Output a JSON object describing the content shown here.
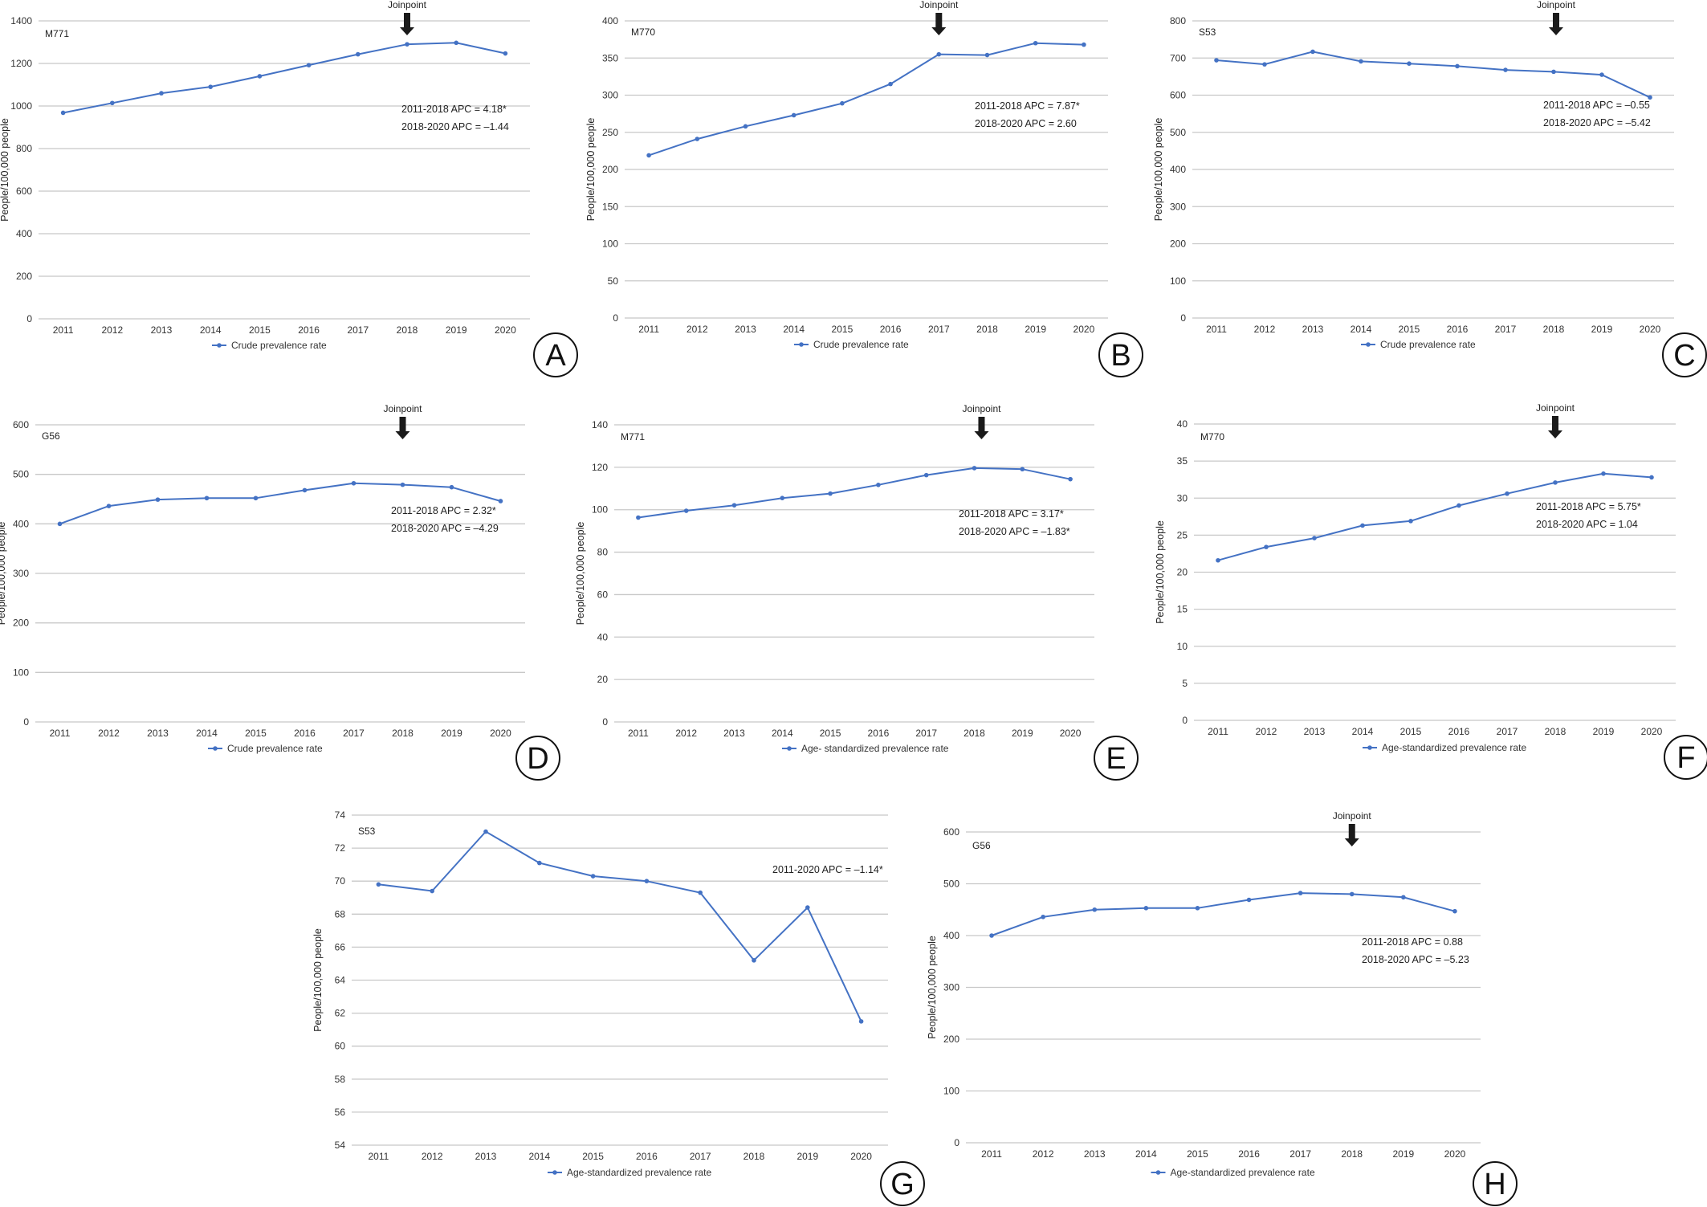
{
  "chart_data": [
    {
      "id": "A",
      "type": "line",
      "code": "M771",
      "categories": [
        "2011",
        "2012",
        "2013",
        "2014",
        "2015",
        "2016",
        "2017",
        "2018",
        "2019",
        "2020"
      ],
      "series": [
        {
          "name": "Crude prevalence rate",
          "values": [
            968,
            1014,
            1060,
            1090,
            1140,
            1192,
            1243,
            1290,
            1297,
            1247
          ]
        }
      ],
      "ylabel": "People/100,000 people",
      "ylim": [
        0,
        1400
      ],
      "ystep": 200,
      "annotations": [
        "2011-2018 APC = 4.18*",
        "2018-2020 APC = –1.44"
      ],
      "joinpoint_label": "Joinpoint",
      "joinpoint_at": 7.0,
      "panel_letter": "A"
    },
    {
      "id": "B",
      "type": "line",
      "code": "M770",
      "categories": [
        "2011",
        "2012",
        "2013",
        "2014",
        "2015",
        "2016",
        "2017",
        "2018",
        "2019",
        "2020"
      ],
      "series": [
        {
          "name": "Crude prevalence rate",
          "values": [
            219,
            241,
            258,
            273,
            289,
            315,
            355,
            354,
            370,
            368
          ]
        }
      ],
      "ylabel": "People/100,000 people",
      "ylim": [
        0,
        400
      ],
      "ystep": 50,
      "annotations": [
        "2011-2018 APC = 7.87*",
        "2018-2020 APC = 2.60"
      ],
      "joinpoint_label": "Joinpoint",
      "joinpoint_at": 6.0,
      "panel_letter": "B"
    },
    {
      "id": "C",
      "type": "line",
      "code": "S53",
      "categories": [
        "2011",
        "2012",
        "2013",
        "2014",
        "2015",
        "2016",
        "2017",
        "2018",
        "2019",
        "2020"
      ],
      "series": [
        {
          "name": "Crude prevalence rate",
          "values": [
            694,
            683,
            717,
            691,
            685,
            678,
            668,
            663,
            655,
            594
          ]
        }
      ],
      "ylabel": "People/100,000 people",
      "ylim": [
        0,
        800
      ],
      "ystep": 100,
      "annotations": [
        "2011-2018 APC = –0.55",
        "2018-2020 APC = –5.42"
      ],
      "joinpoint_label": "Joinpoint",
      "joinpoint_at": 7.05,
      "panel_letter": "C"
    },
    {
      "id": "D",
      "type": "line",
      "code": "G56",
      "categories": [
        "2011",
        "2012",
        "2013",
        "2014",
        "2015",
        "2016",
        "2017",
        "2018",
        "2019",
        "2020"
      ],
      "series": [
        {
          "name": "Crude prevalence rate",
          "values": [
            400,
            436,
            449,
            452,
            452,
            468,
            482,
            479,
            474,
            446
          ]
        }
      ],
      "ylabel": "People/100,000 people",
      "ylim": [
        0,
        600
      ],
      "ystep": 100,
      "annotations": [
        "2011-2018 APC = 2.32*",
        "2018-2020 APC = –4.29"
      ],
      "joinpoint_label": "Joinpoint",
      "joinpoint_at": 7.0,
      "panel_letter": "D"
    },
    {
      "id": "E",
      "type": "line",
      "code": "M771",
      "categories": [
        "2011",
        "2012",
        "2013",
        "2014",
        "2015",
        "2016",
        "2017",
        "2018",
        "2019",
        "2020"
      ],
      "series": [
        {
          "name": "Age- standardized prevalence rate",
          "values": [
            96.3,
            99.5,
            102.1,
            105.5,
            107.6,
            111.7,
            116.3,
            119.6,
            119.1,
            114.4
          ]
        }
      ],
      "ylabel": "People/100,000 people",
      "ylim": [
        0,
        140
      ],
      "ystep": 20,
      "annotations": [
        "2011-2018 APC = 3.17*",
        "2018-2020 APC = –1.83*"
      ],
      "joinpoint_label": "Joinpoint",
      "joinpoint_at": 7.15,
      "panel_letter": "E"
    },
    {
      "id": "F",
      "type": "line",
      "code": "M770",
      "categories": [
        "2011",
        "2012",
        "2013",
        "2014",
        "2015",
        "2016",
        "2017",
        "2018",
        "2019",
        "2020"
      ],
      "series": [
        {
          "name": "Age-standardized prevalence rate",
          "values": [
            21.6,
            23.4,
            24.6,
            26.3,
            26.9,
            29.0,
            30.6,
            32.1,
            33.3,
            32.8
          ]
        }
      ],
      "ylabel": "People/100,000 people",
      "ylim": [
        0,
        40
      ],
      "ystep": 5,
      "annotations": [
        "2011-2018 APC = 5.75*",
        "2018-2020 APC = 1.04"
      ],
      "joinpoint_label": "Joinpoint",
      "joinpoint_at": 7.0,
      "panel_letter": "F"
    },
    {
      "id": "G",
      "type": "line",
      "code": "S53",
      "categories": [
        "2011",
        "2012",
        "2013",
        "2014",
        "2015",
        "2016",
        "2017",
        "2018",
        "2019",
        "2020"
      ],
      "series": [
        {
          "name": "Age-standardized prevalence rate",
          "values": [
            69.8,
            69.4,
            73.0,
            71.1,
            70.3,
            70.0,
            69.3,
            65.2,
            68.4,
            61.5
          ]
        }
      ],
      "ylabel": "People/100,000 people",
      "ylim": [
        54,
        74
      ],
      "ystep": 2,
      "annotations": [
        "2011-2020 APC = –1.14*"
      ],
      "joinpoint_label": "",
      "joinpoint_at": null,
      "panel_letter": "G"
    },
    {
      "id": "H",
      "type": "line",
      "code": "G56",
      "categories": [
        "2011",
        "2012",
        "2013",
        "2014",
        "2015",
        "2016",
        "2017",
        "2018",
        "2019",
        "2020"
      ],
      "series": [
        {
          "name": "Age-standardized prevalence rate",
          "values": [
            400,
            436,
            450,
            453,
            453,
            469,
            482,
            480,
            474,
            447
          ]
        }
      ],
      "ylabel": "People/100,000 people",
      "ylim": [
        0,
        600
      ],
      "ystep": 100,
      "annotations": [
        "2011-2018 APC = 0.88",
        "2018-2020 APC = –5.23"
      ],
      "joinpoint_label": "Joinpoint",
      "joinpoint_at": 7.0,
      "panel_letter": "H"
    }
  ],
  "colors": {
    "series": "#4472c4",
    "grid": "#c8c8c8",
    "arrow": "#1a1a1a"
  }
}
